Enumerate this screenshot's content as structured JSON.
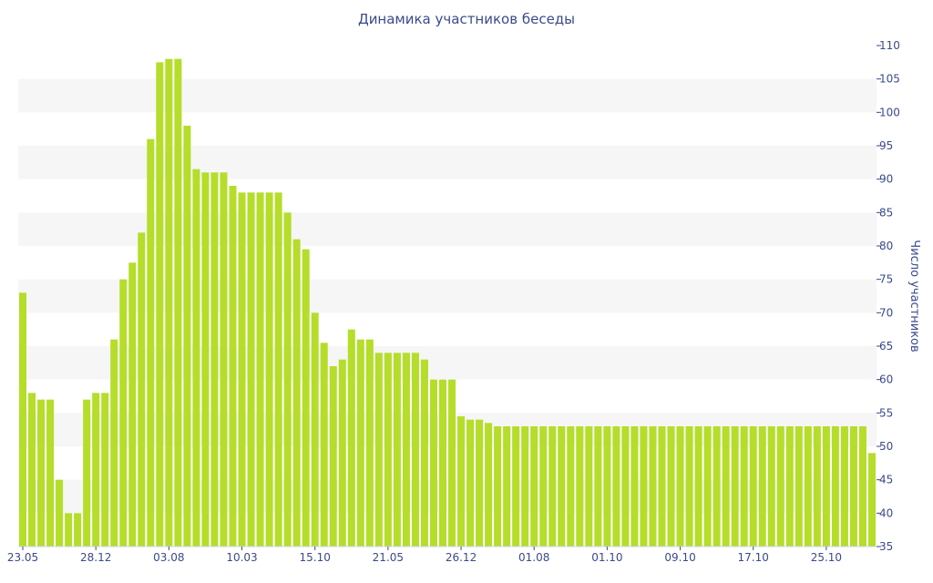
{
  "chart_data": {
    "type": "bar",
    "title": "Динамика участников беседы",
    "xlabel": "",
    "ylabel": "Число участников",
    "ylim": [
      35,
      110
    ],
    "y_ticks": [
      35,
      40,
      45,
      50,
      55,
      60,
      65,
      70,
      75,
      80,
      85,
      90,
      95,
      100,
      105,
      110
    ],
    "y_axis_side": "right",
    "grid": "alternating horizontal bands",
    "x_tick_labels": [
      "23.05",
      "28.12",
      "03.08",
      "10.03",
      "15.10",
      "21.05",
      "26.12",
      "01.08",
      "01.10",
      "09.10",
      "17.10",
      "25.10"
    ],
    "x_tick_label_indices": [
      0,
      8,
      16,
      24,
      32,
      40,
      48,
      56,
      64,
      72,
      80,
      88
    ],
    "bar_color": "#b5dd2a",
    "values": [
      73,
      58,
      57,
      57,
      45,
      40,
      40,
      57,
      58,
      58,
      66,
      75,
      77.5,
      82,
      96,
      107.5,
      108,
      108,
      98,
      91.5,
      91,
      91,
      91,
      89,
      88,
      88,
      88,
      88,
      88,
      85,
      81,
      79.5,
      70,
      65.5,
      62,
      63,
      67.5,
      66,
      66,
      64,
      64,
      64,
      64,
      64,
      63,
      60,
      60,
      60,
      54.5,
      54,
      54,
      53.5,
      53,
      53,
      53,
      53,
      53,
      53,
      53,
      53,
      53,
      53,
      53,
      53,
      53,
      53,
      53,
      53,
      53,
      53,
      53,
      53,
      53,
      53,
      53,
      53,
      53,
      53,
      53,
      53,
      53,
      53,
      53,
      53,
      53,
      53,
      53,
      53,
      53,
      53,
      53,
      53,
      53,
      49
    ]
  }
}
